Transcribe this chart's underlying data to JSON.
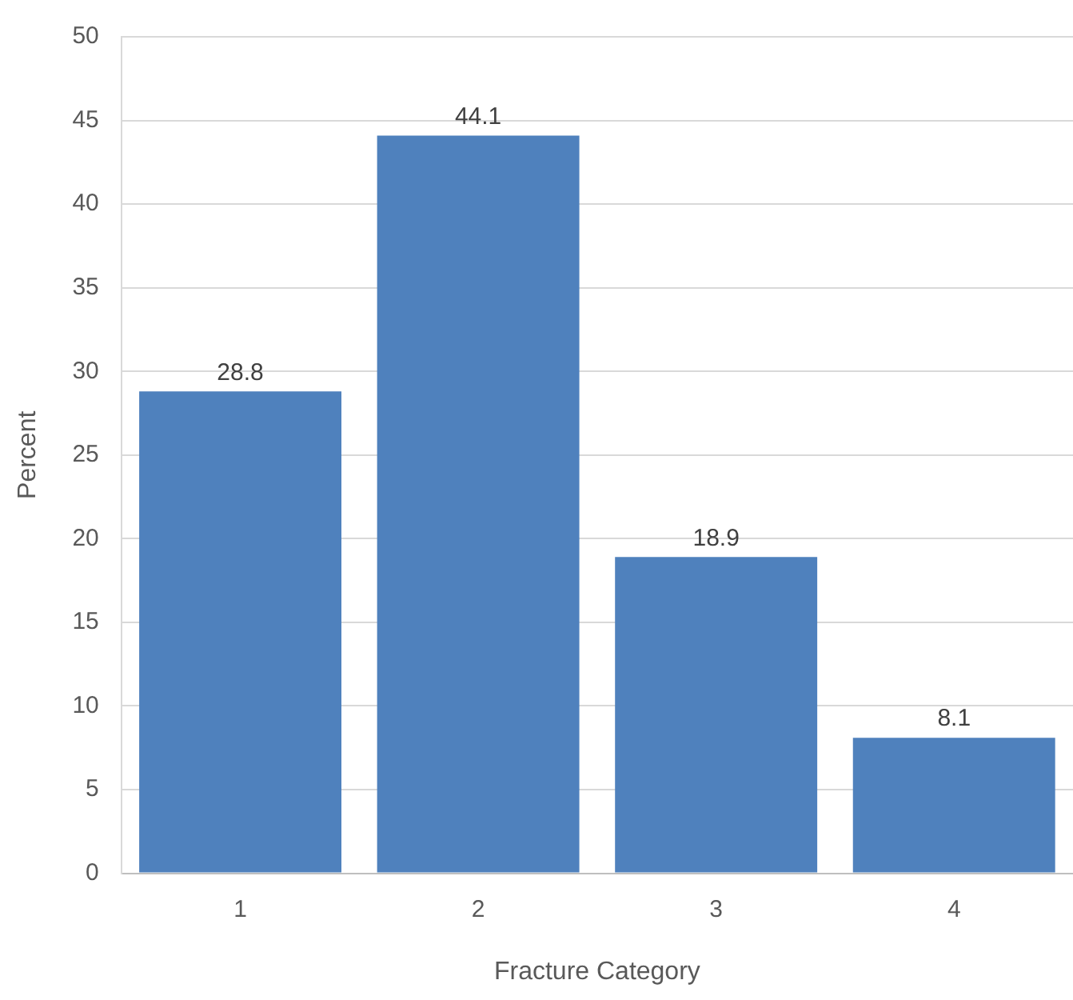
{
  "chart_data": {
    "type": "bar",
    "xlabel": "Fracture Category",
    "ylabel": "Percent",
    "categories": [
      "1",
      "2",
      "3",
      "4"
    ],
    "values": [
      28.8,
      44.1,
      18.9,
      8.1
    ],
    "color": "#4f81bd",
    "ylim": [
      0,
      50
    ],
    "yticks": [
      0,
      5,
      10,
      15,
      20,
      25,
      30,
      35,
      40,
      45,
      50
    ],
    "grid": "y",
    "legend": false,
    "data_labels": true
  }
}
